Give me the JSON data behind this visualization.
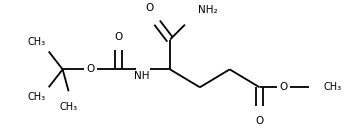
{
  "bg_color": "#ffffff",
  "line_color": "#000000",
  "lw": 1.3,
  "fs": 7.5,
  "fig_width": 3.54,
  "fig_height": 1.38,
  "dpi": 100,
  "xlim": [
    0,
    354
  ],
  "ylim": [
    0,
    138
  ]
}
